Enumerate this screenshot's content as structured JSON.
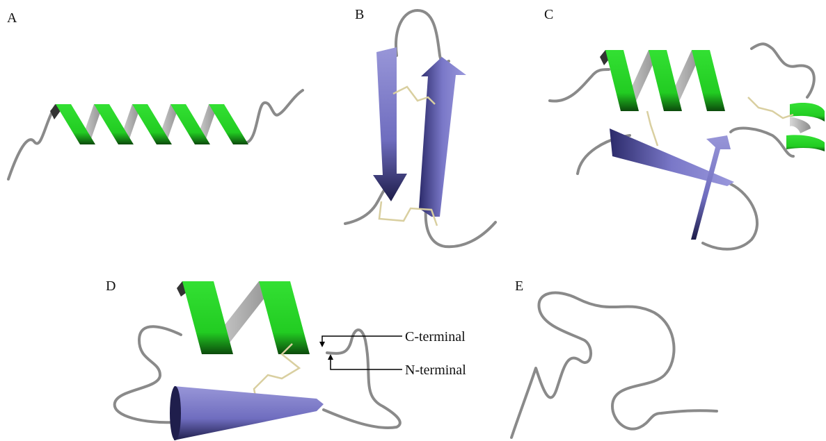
{
  "panels": [
    {
      "label": "A"
    },
    {
      "label": "B"
    },
    {
      "label": "C"
    },
    {
      "label": "D"
    },
    {
      "label": "E"
    }
  ],
  "annotations": [
    "C-terminal",
    "N-terminal"
  ]
}
